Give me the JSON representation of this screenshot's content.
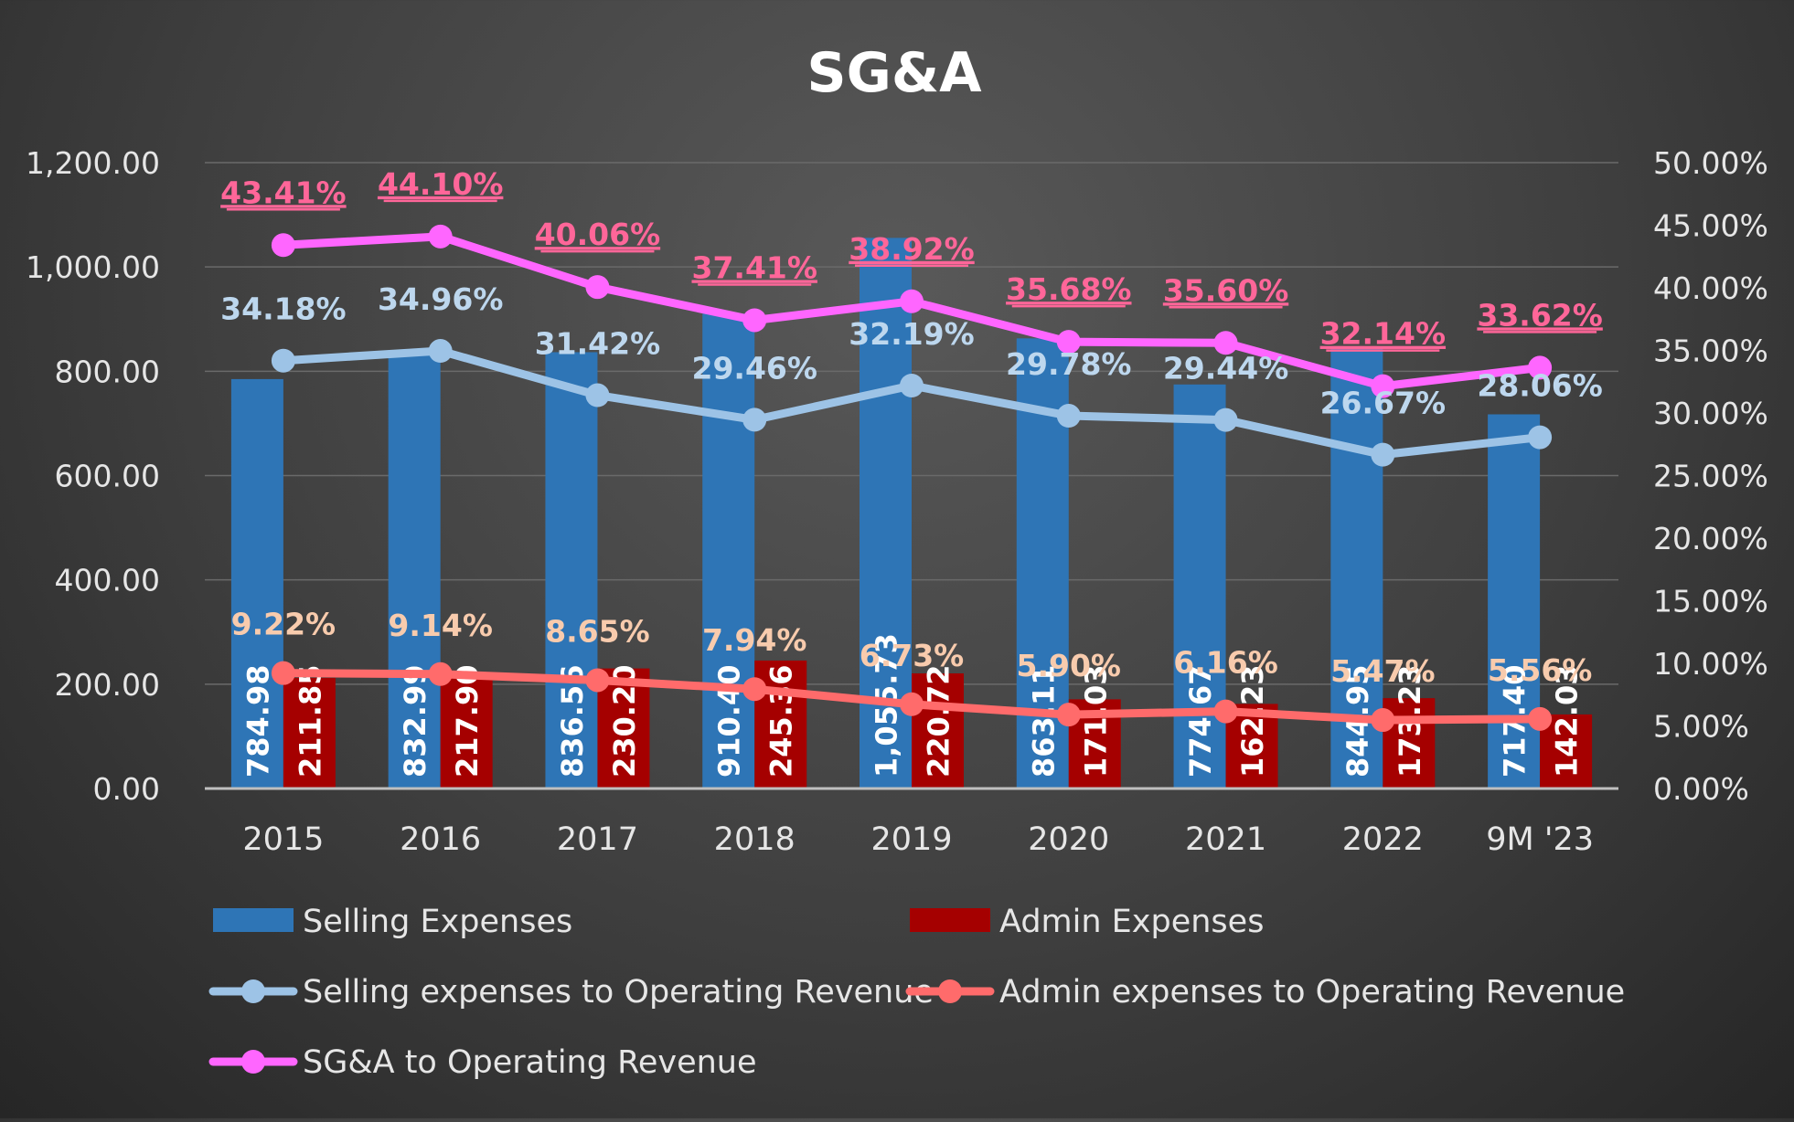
{
  "chart_data": {
    "type": "bar",
    "title": "SG&A",
    "categories": [
      "2015",
      "2016",
      "2017",
      "2018",
      "2019",
      "2020",
      "2021",
      "2022",
      "9M '23"
    ],
    "ylim_left": [
      0,
      1200
    ],
    "ylim_right": [
      0,
      0.5
    ],
    "left_ticks": [
      "0.00",
      "200.00",
      "400.00",
      "600.00",
      "800.00",
      "1,000.00",
      "1,200.00"
    ],
    "right_ticks": [
      "0.00%",
      "5.00%",
      "10.00%",
      "15.00%",
      "20.00%",
      "25.00%",
      "30.00%",
      "35.00%",
      "40.00%",
      "45.00%",
      "50.00%"
    ],
    "grid": true,
    "legend_position": "bottom",
    "bars": [
      {
        "name": "Selling Expenses",
        "color": "#2E75B6",
        "values": [
          784.98,
          832.99,
          836.56,
          910.4,
          1055.73,
          863.11,
          774.67,
          844.95,
          717.4
        ],
        "labels": [
          "784.98",
          "832.99",
          "836.56",
          "910.40",
          "1,055.73",
          "863.11",
          "774.67",
          "844.95",
          "717.40"
        ]
      },
      {
        "name": "Admin Expenses",
        "color": "#A50000",
        "values": [
          211.85,
          217.9,
          230.2,
          245.36,
          220.72,
          171.03,
          162.23,
          173.23,
          142.03
        ],
        "labels": [
          "211.85",
          "217.90",
          "230.20",
          "245.36",
          "220.72",
          "171.03",
          "162.23",
          "173.23",
          "142.03"
        ]
      }
    ],
    "lines": [
      {
        "name": "Selling expenses to Operating Revenue",
        "color": "#9DC3E6",
        "label_color": "#BDD7EE",
        "values": [
          0.3418,
          0.3496,
          0.3142,
          0.2946,
          0.3219,
          0.2978,
          0.2944,
          0.2667,
          0.2806
        ],
        "labels": [
          "34.18%",
          "34.96%",
          "31.42%",
          "29.46%",
          "32.19%",
          "29.78%",
          "29.44%",
          "26.67%",
          "28.06%"
        ]
      },
      {
        "name": "Admin expenses to Operating Revenue",
        "color": "#FF6B6B",
        "label_color": "#F8CBAD",
        "values": [
          0.0922,
          0.0914,
          0.0865,
          0.0794,
          0.0673,
          0.059,
          0.0616,
          0.0547,
          0.0556
        ],
        "labels": [
          "9.22%",
          "9.14%",
          "8.65%",
          "7.94%",
          "6.73%",
          "5.90%",
          "6.16%",
          "5.47%",
          "5.56%"
        ]
      },
      {
        "name": "SG&A to Operating Revenue",
        "color": "#FF66FF",
        "label_color": "#FF6699",
        "values": [
          0.4341,
          0.441,
          0.4006,
          0.3741,
          0.3892,
          0.3568,
          0.356,
          0.3214,
          0.3362
        ],
        "labels": [
          "43.41%",
          "44.10%",
          "40.06%",
          "37.41%",
          "38.92%",
          "35.68%",
          "35.60%",
          "32.14%",
          "33.62%"
        ]
      }
    ]
  }
}
